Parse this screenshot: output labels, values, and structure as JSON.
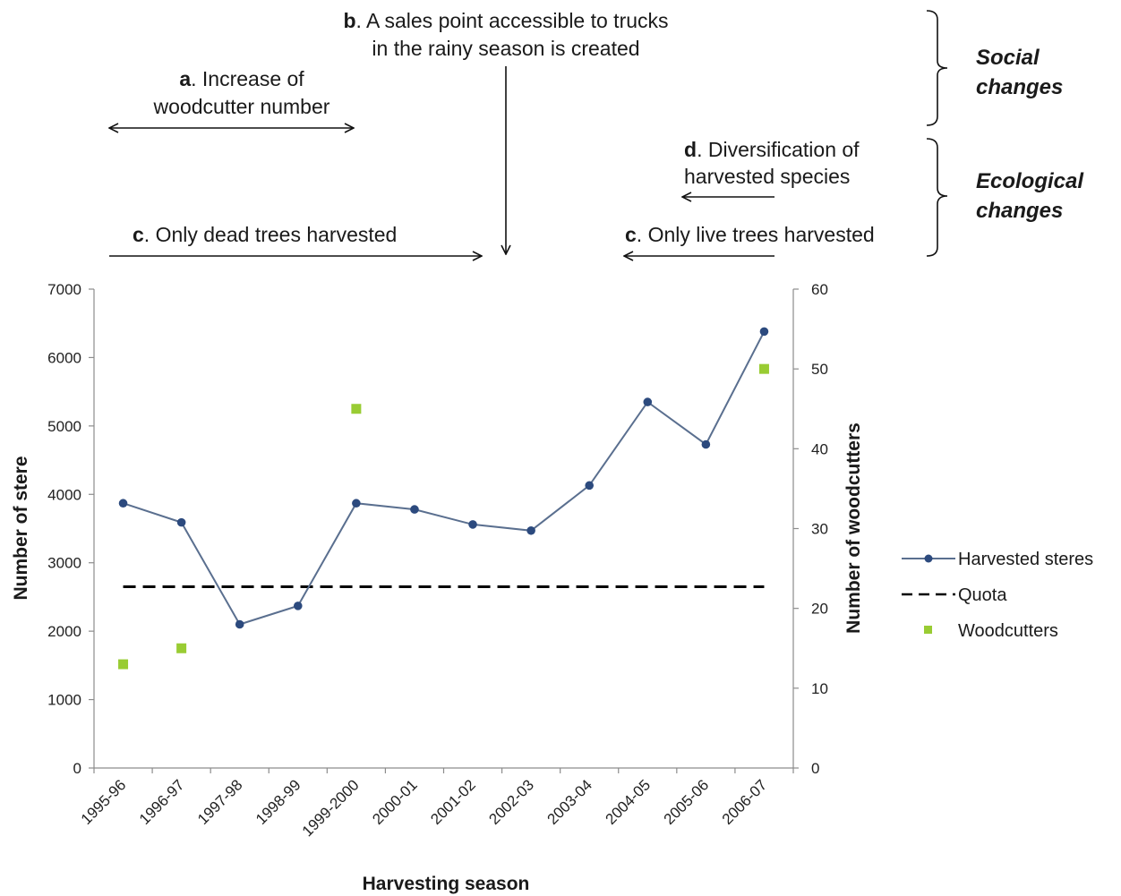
{
  "annotations": {
    "a": {
      "letter": "a",
      "line1": ". Increase of",
      "line2": "woodcutter number"
    },
    "b": {
      "letter": "b",
      "line1": ". A sales point accessible to trucks",
      "line2": "in the rainy season is created"
    },
    "c_dead": {
      "letter": "c",
      "text": ". Only dead trees harvested"
    },
    "c_live": {
      "letter": "c",
      "text": ". Only live trees harvested"
    },
    "d": {
      "letter": "d",
      "line1": ". Diversification of",
      "line2": "harvested species"
    }
  },
  "groups": {
    "social": {
      "line1": "Social",
      "line2": "changes"
    },
    "ecological": {
      "line1": "Ecological",
      "line2": "changes"
    }
  },
  "chart_data": {
    "type": "line",
    "xlabel": "Harvesting season",
    "ylabel": "Number of stere",
    "y2label": "Number of woodcutters",
    "categories": [
      "1995-96",
      "1996-97",
      "1997-98",
      "1998-99",
      "1999-2000",
      "2000-01",
      "2001-02",
      "2002-03",
      "2003-04",
      "2004-05",
      "2005-06",
      "2006-07"
    ],
    "ylim": [
      0,
      7000
    ],
    "yticks": [
      "0",
      "1000",
      "2000",
      "3000",
      "4000",
      "5000",
      "6000",
      "7000"
    ],
    "y2lim": [
      0,
      60
    ],
    "y2ticks": [
      "0",
      "10",
      "20",
      "30",
      "40",
      "50",
      "60"
    ],
    "grid": false,
    "legend_position": "right",
    "series": [
      {
        "name": "Harvested steres",
        "kind": "line-marker",
        "axis": "left",
        "color": "#5a6f8f",
        "marker_color": "#2c4a7e",
        "values": [
          3870,
          3590,
          2100,
          2370,
          3870,
          3780,
          3560,
          3470,
          4130,
          5350,
          4730,
          6380
        ]
      },
      {
        "name": "Quota",
        "kind": "dashed-line",
        "axis": "left",
        "color": "#000000",
        "values": [
          2650,
          2650,
          2650,
          2650,
          2650,
          2650,
          2650,
          2650,
          2650,
          2650,
          2650,
          2650
        ]
      },
      {
        "name": "Woodcutters",
        "kind": "square-marker",
        "axis": "right",
        "color": "#99cc33",
        "values": [
          13,
          15,
          null,
          null,
          45,
          null,
          null,
          null,
          null,
          null,
          null,
          50
        ]
      }
    ]
  }
}
